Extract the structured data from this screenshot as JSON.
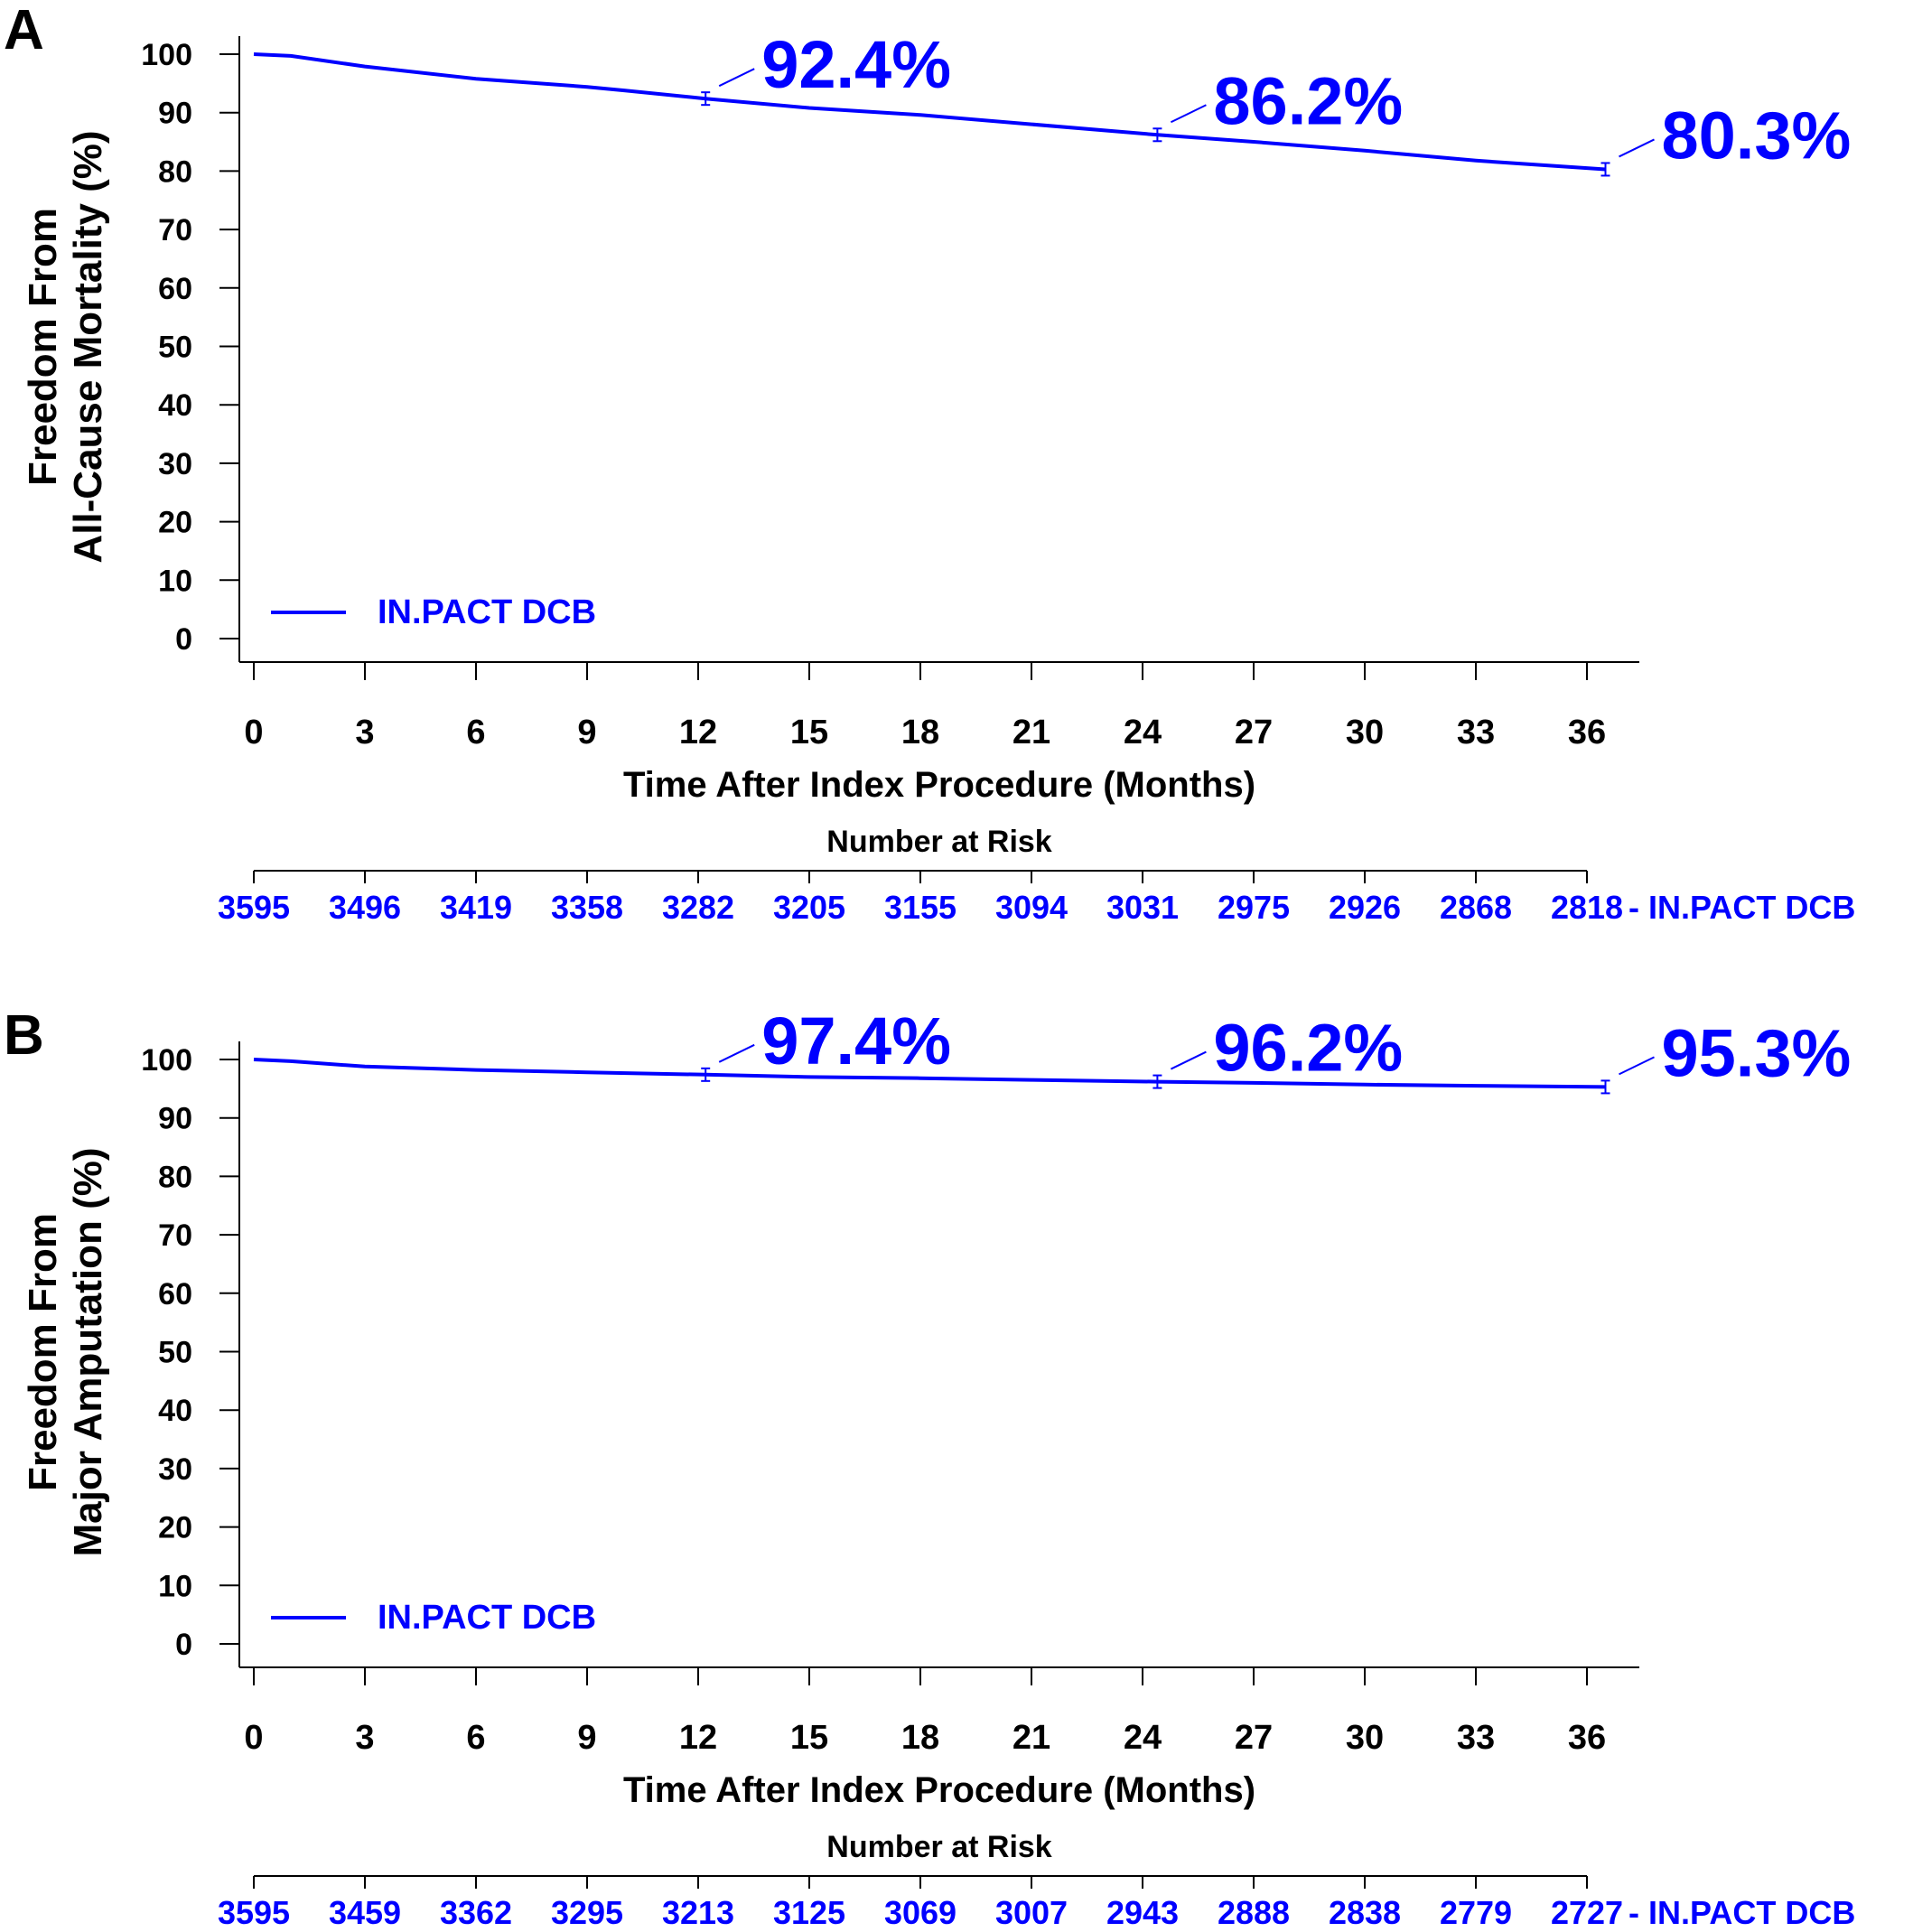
{
  "chart_data": [
    {
      "type": "line",
      "panel_label": "A",
      "ylabel": [
        "Freedom From",
        "All-Cause Mortality (%)"
      ],
      "xlabel": "Time After Index Procedure (Months)",
      "xlim": [
        0,
        36
      ],
      "ylim": [
        0,
        100
      ],
      "xticks": [
        0,
        3,
        6,
        9,
        12,
        15,
        18,
        21,
        24,
        27,
        30,
        33,
        36
      ],
      "yticks": [
        0,
        10,
        20,
        30,
        40,
        50,
        60,
        70,
        80,
        90,
        100
      ],
      "legend_position": "bottom-left",
      "series": [
        {
          "name": "IN.PACT DCB",
          "color": "#0000ff",
          "x": [
            0,
            1,
            3,
            6,
            9,
            10,
            12.2,
            15,
            18,
            21,
            24.4,
            27,
            30,
            33,
            36.5
          ],
          "y": [
            100,
            99.7,
            97.9,
            95.8,
            94.4,
            93.8,
            92.4,
            90.8,
            89.6,
            88.0,
            86.2,
            85.0,
            83.5,
            81.8,
            80.3
          ]
        }
      ],
      "annotations": [
        {
          "x": 12.2,
          "y": 92.4,
          "text": "92.4%"
        },
        {
          "x": 24.4,
          "y": 86.2,
          "text": "86.2%"
        },
        {
          "x": 36.5,
          "y": 80.3,
          "text": "80.3%"
        }
      ],
      "risk_table": {
        "title": "Number at Risk",
        "series": "IN.PACT DCB",
        "row_label": "- IN.PACT DCB",
        "values": [
          "3595",
          "3496",
          "3419",
          "3358",
          "3282",
          "3205",
          "3155",
          "3094",
          "3031",
          "2975",
          "2926",
          "2868",
          "2818"
        ]
      }
    },
    {
      "type": "line",
      "panel_label": "B",
      "ylabel": [
        "Freedom From",
        "Major Amputation (%)"
      ],
      "xlabel": "Time After Index Procedure (Months)",
      "xlim": [
        0,
        36
      ],
      "ylim": [
        0,
        100
      ],
      "xticks": [
        0,
        3,
        6,
        9,
        12,
        15,
        18,
        21,
        24,
        27,
        30,
        33,
        36
      ],
      "yticks": [
        0,
        10,
        20,
        30,
        40,
        50,
        60,
        70,
        80,
        90,
        100
      ],
      "legend_position": "bottom-left",
      "series": [
        {
          "name": "IN.PACT DCB",
          "color": "#0000ff",
          "x": [
            0,
            1,
            3,
            6,
            9,
            12.2,
            15,
            18,
            21,
            24.4,
            27,
            30,
            33,
            36.5
          ],
          "y": [
            100,
            99.7,
            98.8,
            98.2,
            97.8,
            97.4,
            97.0,
            96.8,
            96.5,
            96.2,
            96.0,
            95.7,
            95.5,
            95.3
          ]
        }
      ],
      "annotations": [
        {
          "x": 12.2,
          "y": 97.4,
          "text": "97.4%"
        },
        {
          "x": 24.4,
          "y": 96.2,
          "text": "96.2%"
        },
        {
          "x": 36.5,
          "y": 95.3,
          "text": "95.3%"
        }
      ],
      "risk_table": {
        "title": "Number at Risk",
        "series": "IN.PACT DCB",
        "row_label": "- IN.PACT DCB",
        "values": [
          "3595",
          "3459",
          "3362",
          "3295",
          "3213",
          "3125",
          "3069",
          "3007",
          "2943",
          "2888",
          "2838",
          "2779",
          "2727"
        ]
      }
    }
  ]
}
